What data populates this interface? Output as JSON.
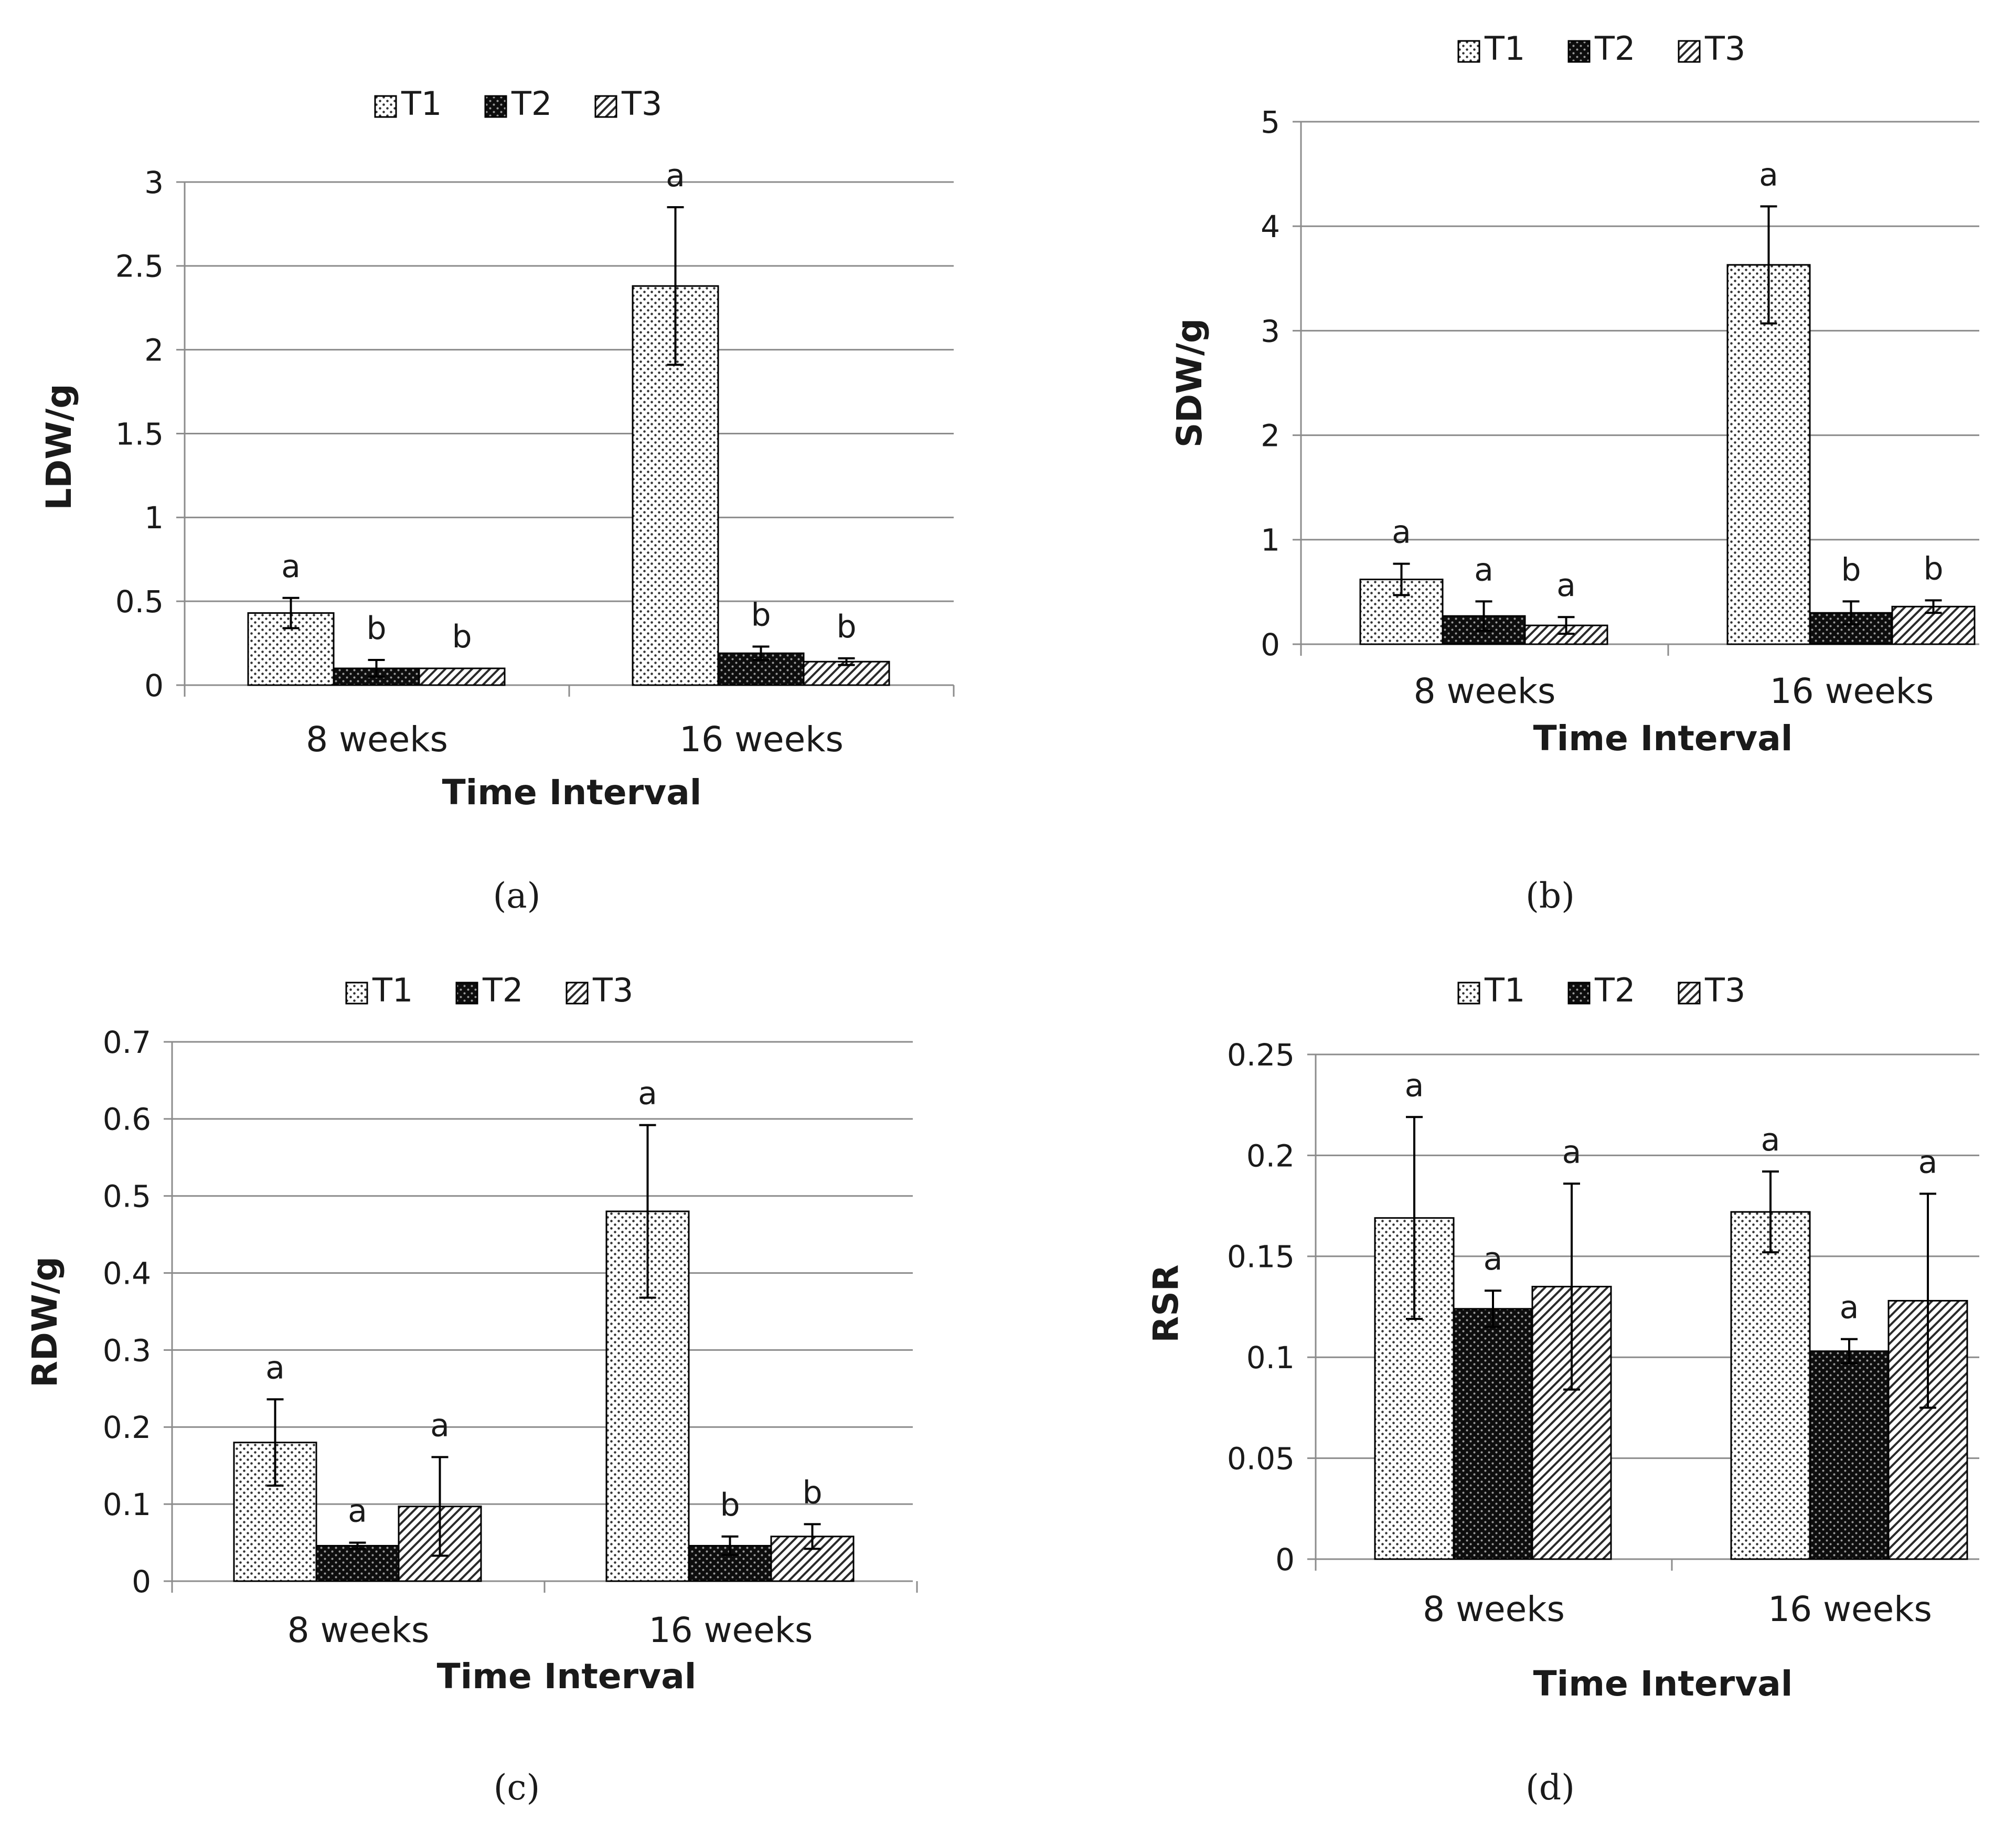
{
  "figure": {
    "legend_series": [
      "T1",
      "T2",
      "T3"
    ],
    "colors": {
      "bar_stroke": "#000000",
      "grid": "#8c8c8c",
      "axis": "#8c8c8c",
      "text": "#1a1a1a",
      "background": "#ffffff"
    },
    "patterns": {
      "T1": "dotted",
      "T2": "dark-checked",
      "T3": "diagonal-hatch"
    }
  },
  "chart_data": [
    {
      "panel": "(a)",
      "type": "bar",
      "title": "",
      "categories": [
        "8 weeks",
        "16 weeks"
      ],
      "xlabel": "Time Interval",
      "ylabel": "LDW/g",
      "ylim": [
        0,
        3
      ],
      "yticks": [
        "0",
        "0.5",
        "1",
        "1.5",
        "2",
        "2.5",
        "3"
      ],
      "ytick_values": [
        0,
        0.5,
        1,
        1.5,
        2,
        2.5,
        3
      ],
      "grid": true,
      "legend": "top-center",
      "series": [
        {
          "name": "T1",
          "values": [
            0.43,
            2.38
          ],
          "errors": [
            0.09,
            0.47
          ],
          "letters": [
            "a",
            "a"
          ]
        },
        {
          "name": "T2",
          "values": [
            0.1,
            0.19
          ],
          "errors": [
            0.05,
            0.04
          ],
          "letters": [
            "b",
            "b"
          ]
        },
        {
          "name": "T3",
          "values": [
            0.1,
            0.14
          ],
          "errors": [
            0.0,
            0.02
          ],
          "letters": [
            "b",
            "b"
          ]
        }
      ]
    },
    {
      "panel": "(b)",
      "type": "bar",
      "title": "",
      "categories": [
        "8 weeks",
        "16 weeks"
      ],
      "xlabel": "Time Interval",
      "ylabel": "SDW/g",
      "ylim": [
        0,
        5
      ],
      "yticks": [
        "0",
        "1",
        "2",
        "3",
        "4",
        "5"
      ],
      "ytick_values": [
        0,
        1,
        2,
        3,
        4,
        5
      ],
      "grid": true,
      "legend": "top-center",
      "series": [
        {
          "name": "T1",
          "values": [
            0.62,
            3.63
          ],
          "errors": [
            0.15,
            0.56
          ],
          "letters": [
            "a",
            "a"
          ]
        },
        {
          "name": "T2",
          "values": [
            0.27,
            0.3
          ],
          "errors": [
            0.14,
            0.11
          ],
          "letters": [
            "a",
            "b"
          ]
        },
        {
          "name": "T3",
          "values": [
            0.18,
            0.36
          ],
          "errors": [
            0.08,
            0.06
          ],
          "letters": [
            "a",
            "b"
          ]
        }
      ]
    },
    {
      "panel": "(c)",
      "type": "bar",
      "title": "",
      "categories": [
        "8 weeks",
        "16 weeks"
      ],
      "xlabel": "Time Interval",
      "ylabel": "RDW/g",
      "ylim": [
        0,
        0.7
      ],
      "yticks": [
        "0",
        "0.1",
        "0.2",
        "0.3",
        "0.4",
        "0.5",
        "0.6",
        "0.7"
      ],
      "ytick_values": [
        0,
        0.1,
        0.2,
        0.3,
        0.4,
        0.5,
        0.6,
        0.7
      ],
      "grid": true,
      "legend": "top-center",
      "series": [
        {
          "name": "T1",
          "values": [
            0.18,
            0.48
          ],
          "errors": [
            0.056,
            0.112
          ],
          "letters": [
            "a",
            "a"
          ]
        },
        {
          "name": "T2",
          "values": [
            0.046,
            0.046
          ],
          "errors": [
            0.004,
            0.012
          ],
          "letters": [
            "a",
            "b"
          ]
        },
        {
          "name": "T3",
          "values": [
            0.097,
            0.058
          ],
          "errors": [
            0.064,
            0.016
          ],
          "letters": [
            "a",
            "b"
          ]
        }
      ]
    },
    {
      "panel": "(d)",
      "type": "bar",
      "title": "",
      "categories": [
        "8 weeks",
        "16 weeks"
      ],
      "xlabel": "Time Interval",
      "ylabel": "RSR",
      "ylim": [
        0,
        0.25
      ],
      "yticks": [
        "0",
        "0.05",
        "0.1",
        "0.15",
        "0.2",
        "0.25"
      ],
      "ytick_values": [
        0,
        0.05,
        0.1,
        0.15,
        0.2,
        0.25
      ],
      "grid": true,
      "legend": "top-center",
      "series": [
        {
          "name": "T1",
          "values": [
            0.169,
            0.172
          ],
          "errors": [
            0.05,
            0.02
          ],
          "letters": [
            "a",
            "a"
          ]
        },
        {
          "name": "T2",
          "values": [
            0.124,
            0.103
          ],
          "errors": [
            0.009,
            0.006
          ],
          "letters": [
            "a",
            "a"
          ]
        },
        {
          "name": "T3",
          "values": [
            0.135,
            0.128
          ],
          "errors": [
            0.051,
            0.053
          ],
          "letters": [
            "a",
            "a"
          ]
        }
      ]
    }
  ]
}
